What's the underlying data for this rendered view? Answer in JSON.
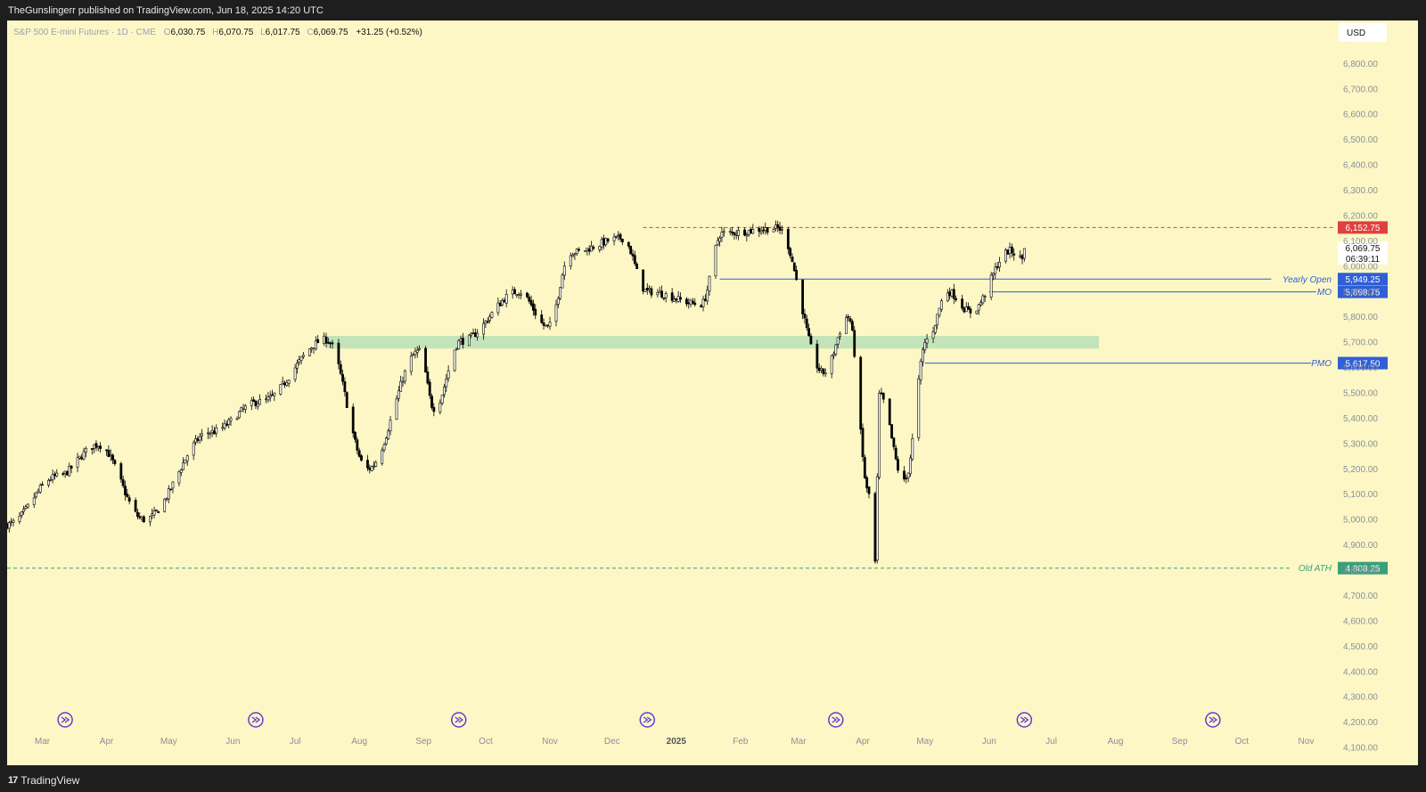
{
  "header": {
    "published": "TheGunslingerr published on TradingView.com, Jun 18, 2025 14:20 UTC"
  },
  "footer": {
    "brand": "TradingView"
  },
  "legend": {
    "symbol": "S&P 500 E-mini Futures · 1D · CME",
    "o_label": "O",
    "o": "6,030.75",
    "h_label": "H",
    "h": "6,070.75",
    "l_label": "L",
    "l": "6,017.75",
    "c_label": "C",
    "c": "6,069.75",
    "change": "+31.25 (+0.52%)"
  },
  "currency": "USD",
  "colors": {
    "background": "#fdf7c6",
    "up": "#ffffff",
    "down": "#000000",
    "ath_red": "#e0403f",
    "blue": "#2f5fd6",
    "green": "#3a9f7a",
    "zone": "#b9e0b5",
    "event": "#5b3fd6"
  },
  "chart_data": {
    "type": "candlestick",
    "y_axis": {
      "range": [
        4030,
        6970
      ],
      "ticks": [
        "4,100.00",
        "4,200.00",
        "4,300.00",
        "4,400.00",
        "4,500.00",
        "4,600.00",
        "4,700.00",
        "4,800.00",
        "4,900.00",
        "5,000.00",
        "5,100.00",
        "5,200.00",
        "5,300.00",
        "5,400.00",
        "5,500.00",
        "5,600.00",
        "5,700.00",
        "5,800.00",
        "5,900.00",
        "6,000.00",
        "6,100.00",
        "6,200.00",
        "6,300.00",
        "6,400.00",
        "6,500.00",
        "6,600.00",
        "6,700.00",
        "6,800.00",
        "6,900.00"
      ]
    },
    "x_axis": {
      "labels": [
        "Mar",
        "Apr",
        "May",
        "Jun",
        "Jul",
        "Aug",
        "Sep",
        "Oct",
        "Nov",
        "Dec",
        "2025",
        "Feb",
        "Mar",
        "Apr",
        "May",
        "Jun",
        "Jul",
        "Aug",
        "Sep",
        "Oct",
        "Nov"
      ],
      "range": [
        "2024-02-13",
        "2025-11-15"
      ]
    },
    "price_anchors": [
      [
        "2024-02-13",
        4980
      ],
      [
        "2024-03-08",
        5170
      ],
      [
        "2024-03-28",
        5295
      ],
      [
        "2024-04-19",
        5000
      ],
      [
        "2024-05-21",
        5345
      ],
      [
        "2024-06-14",
        5465
      ],
      [
        "2024-07-16",
        5710
      ],
      [
        "2024-08-05",
        5200
      ],
      [
        "2024-08-30",
        5665
      ],
      [
        "2024-09-06",
        5440
      ],
      [
        "2024-09-19",
        5705
      ],
      [
        "2024-10-17",
        5900
      ],
      [
        "2024-10-31",
        5760
      ],
      [
        "2024-11-11",
        6055
      ],
      [
        "2024-12-06",
        6110
      ],
      [
        "2024-12-18",
        5900
      ],
      [
        "2025-01-13",
        5850
      ],
      [
        "2025-01-23",
        6130
      ],
      [
        "2025-02-19",
        6150
      ],
      [
        "2025-03-13",
        5580
      ],
      [
        "2025-03-25",
        5800
      ],
      [
        "2025-04-04",
        5100
      ],
      [
        "2025-04-07",
        4830
      ],
      [
        "2025-04-09",
        5490
      ],
      [
        "2025-04-21",
        5150
      ],
      [
        "2025-05-02",
        5710
      ],
      [
        "2025-05-12",
        5900
      ],
      [
        "2025-05-23",
        5820
      ],
      [
        "2025-06-11",
        6060
      ],
      [
        "2025-06-17",
        6030
      ],
      [
        "2025-06-18",
        6069.75
      ]
    ],
    "last": {
      "date": "2025-06-18",
      "open": 6030.75,
      "high": 6070.75,
      "low": 6017.75,
      "close": 6069.75
    },
    "levels": [
      {
        "name": "ATH",
        "value": 6152.75,
        "label": "",
        "tag": "6,152.75",
        "style": "dashed",
        "color": "#e0403f",
        "from": "2024-12-16",
        "to": "2025-11-15"
      },
      {
        "name": "Yearly Open",
        "value": 5949.25,
        "label": "Yearly Open",
        "tag": "5,949.25",
        "style": "solid",
        "color": "#2f5fd6",
        "from": "2025-01-22",
        "to": "2025-11-15"
      },
      {
        "name": "MO",
        "value": 5898.75,
        "label": "MO",
        "tag": "5,898.75",
        "style": "solid",
        "color": "#2f5fd6",
        "from": "2025-06-01",
        "to": "2025-11-15"
      },
      {
        "name": "PMO",
        "value": 5617.5,
        "label": "PMO",
        "tag": "5,617.50",
        "style": "solid",
        "color": "#2f5fd6",
        "from": "2025-05-01",
        "to": "2025-11-15"
      },
      {
        "name": "Old ATH",
        "value": 4808.25,
        "label": "Old ATH",
        "tag": "4,808.25",
        "style": "dashed",
        "color": "#3a9f7a",
        "from": "2024-02-13",
        "to": "2025-11-15"
      }
    ],
    "last_price_tag": {
      "price": "6,069.75",
      "countdown": "06:39:11"
    },
    "zone": {
      "from": "2024-07-16",
      "to": "2025-07-24",
      "low": 5675,
      "high": 5725
    },
    "events": [
      "2024-03-12",
      "2024-06-12",
      "2024-09-18",
      "2024-12-18",
      "2025-03-19",
      "2025-06-18",
      "2025-09-17"
    ]
  }
}
